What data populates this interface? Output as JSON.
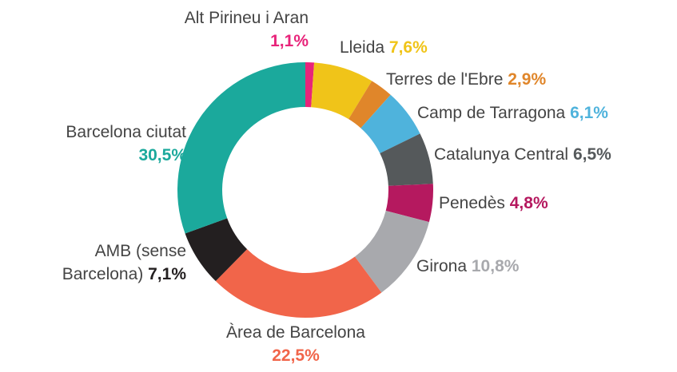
{
  "chart_data": {
    "type": "donut",
    "categories": [
      "Alt Pirineu i Aran",
      "Lleida",
      "Terres de l'Ebre",
      "Camp de Tarragona",
      "Catalunya Central",
      "Penedès",
      "Girona",
      "Àrea de Barcelona",
      "AMB (sense Barcelona)",
      "Barcelona ciutat"
    ],
    "values": [
      1.1,
      7.6,
      2.9,
      6.1,
      6.5,
      4.8,
      10.8,
      22.5,
      7.1,
      30.5
    ],
    "value_labels": [
      "1,1%",
      "7,6%",
      "2,9%",
      "6,1%",
      "6,5%",
      "4,8%",
      "10,8%",
      "22,5%",
      "7,1%",
      "30,5%"
    ],
    "colors": [
      "#e8247a",
      "#f0c419",
      "#e0862a",
      "#4fb3dc",
      "#55595b",
      "#b5195f",
      "#a8a9ad",
      "#f1654a",
      "#231f20",
      "#1ba99c"
    ]
  }
}
